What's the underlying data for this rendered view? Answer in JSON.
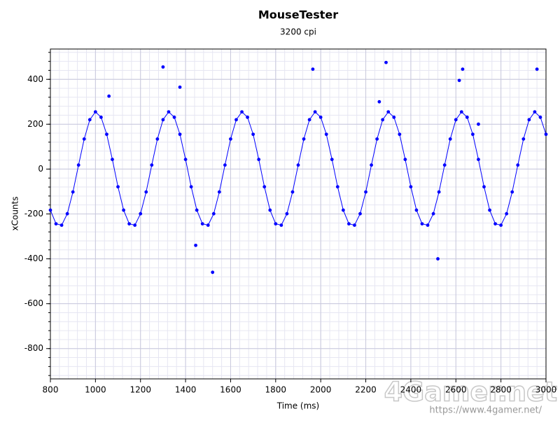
{
  "chart_data": {
    "type": "scatter",
    "title": "MouseTester",
    "subtitle": "3200 cpi",
    "xlabel": "Time (ms)",
    "ylabel": "xCounts",
    "xlim": [
      800,
      3000
    ],
    "ylim": [
      -935,
      535
    ],
    "xticks": [
      800,
      1000,
      1200,
      1400,
      1600,
      1800,
      2000,
      2200,
      2400,
      2600,
      2800,
      3000
    ],
    "yticks": [
      -800,
      -600,
      -400,
      -200,
      0,
      200,
      400
    ],
    "grid": true,
    "series": [
      {
        "color": "#0000ff",
        "line": true,
        "x": [
          800,
          825,
          850,
          875,
          900,
          925,
          950,
          975,
          1000,
          1025,
          1050,
          1075,
          1100,
          1125,
          1150,
          1175,
          1200,
          1225,
          1250,
          1275,
          1300,
          1325,
          1350,
          1375,
          1400,
          1425,
          1450,
          1475,
          1500,
          1525,
          1550,
          1575,
          1600,
          1625,
          1650,
          1675,
          1700,
          1725,
          1750,
          1775,
          1800,
          1825,
          1850,
          1875,
          1900,
          1925,
          1950,
          1975,
          2000,
          2025,
          2050,
          2075,
          2100,
          2125,
          2150,
          2175,
          2200,
          2225,
          2250,
          2275,
          2300,
          2325,
          2350,
          2375,
          2400,
          2425,
          2450,
          2475,
          2500,
          2525,
          2550,
          2575,
          2600,
          2625,
          2650,
          2675,
          2700,
          2725,
          2750,
          2775,
          2800,
          2825,
          2850,
          2875,
          2900,
          2925,
          2950,
          2975,
          3000
        ],
        "values": [
          -183,
          -244,
          -250,
          -199,
          -102,
          18,
          134,
          220,
          255,
          231,
          155,
          43,
          -79,
          -183,
          -244,
          -250,
          -199,
          -102,
          18,
          134,
          220,
          255,
          231,
          155,
          43,
          -79,
          -183,
          -244,
          -250,
          -199,
          -102,
          18,
          134,
          220,
          255,
          231,
          155,
          43,
          -79,
          -183,
          -244,
          -250,
          -199,
          -102,
          18,
          134,
          220,
          255,
          231,
          155,
          43,
          -79,
          -183,
          -244,
          -250,
          -199,
          -102,
          18,
          134,
          220,
          255,
          231,
          155,
          43,
          -79,
          -183,
          -244,
          -250,
          -199,
          -102,
          18,
          134,
          220,
          255,
          231,
          155,
          43,
          -79,
          -183,
          -244,
          -250,
          -199,
          -102,
          18,
          134,
          220,
          255,
          231,
          155
        ]
      },
      {
        "color": "#0000ff",
        "x": [
          1060,
          1300,
          1375,
          1445,
          1520,
          1965,
          2260,
          2290,
          2520,
          2615,
          2630,
          2700,
          2960
        ],
        "values": [
          325,
          455,
          365,
          -340,
          -460,
          445,
          300,
          475,
          -400,
          395,
          445,
          200,
          445
        ]
      }
    ],
    "watermark": "4Gamer.net",
    "watermark_url": "https://www.4gamer.net/"
  }
}
